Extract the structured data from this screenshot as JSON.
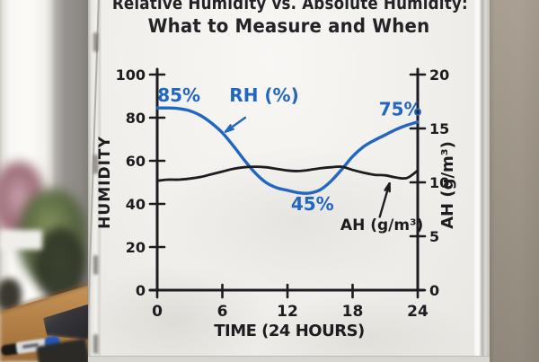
{
  "scene": {
    "title_line1": "Relative Humidity vs. Absolute Humidity:",
    "title_line2": "What to Measure and When"
  },
  "chart_data": {
    "type": "line",
    "title": "Relative Humidity vs. Absolute Humidity: What to Measure and When",
    "xlabel": "TIME (24 HOURS)",
    "ylabel_left": "HUMIDITY",
    "ylabel_right": "AH (g/m³)",
    "x_range": [
      0,
      24
    ],
    "x_ticks": [
      0,
      6,
      12,
      18,
      24
    ],
    "y_left_range": [
      0,
      100
    ],
    "y_left_ticks": [
      100,
      80,
      60,
      40,
      20,
      0
    ],
    "y_right_range": [
      0,
      20
    ],
    "y_right_ticks": [
      20,
      15,
      10,
      5,
      0
    ],
    "grid": false,
    "legend": "inline-annotations",
    "ink_black": "#1d1d1f",
    "ink_blue": "#2166c2",
    "x": [
      0,
      1,
      2,
      3,
      4,
      5,
      6,
      7,
      8,
      9,
      10,
      11,
      12,
      13,
      14,
      15,
      16,
      17,
      18,
      19,
      20,
      21,
      22,
      23,
      24
    ],
    "series": [
      {
        "name": "RH (%)",
        "axis": "left",
        "color": "#2166c2",
        "values": [
          84.5,
          84.5,
          84.2,
          83.2,
          81,
          77.5,
          73,
          67,
          60.5,
          54.5,
          50,
          47.5,
          46.3,
          45.2,
          45,
          46.5,
          50.5,
          56,
          62,
          66.5,
          69.5,
          72,
          74.5,
          76.5,
          78
        ]
      },
      {
        "name": "AH (g/m³)",
        "axis": "right",
        "color": "#1d1d1f",
        "values": [
          10.15,
          10.25,
          10.25,
          10.35,
          10.5,
          10.75,
          11.0,
          11.25,
          11.4,
          11.45,
          11.4,
          11.25,
          11.1,
          11.05,
          11.15,
          11.3,
          11.4,
          11.45,
          11.15,
          10.9,
          10.7,
          10.65,
          10.45,
          10.4,
          11.1
        ]
      }
    ],
    "annotations": [
      {
        "text": "85%",
        "x": 2.0,
        "y": 87.5,
        "color": "#2166c2",
        "size": 20
      },
      {
        "text": "RH (%)",
        "x": 9.85,
        "y": 87.5,
        "color": "#2166c2",
        "size": 20
      },
      {
        "text": "45%",
        "x": 14.3,
        "y": 37.0,
        "color": "#2166c2",
        "size": 20
      },
      {
        "text": "75%",
        "x": 22.4,
        "y": 81.0,
        "color": "#2166c2",
        "size": 20
      },
      {
        "text": "AH (g/m³)",
        "x": 20.7,
        "y": 28.0,
        "color": "#1d1d1f",
        "size": 17
      }
    ],
    "arrows": [
      {
        "x1": 8.1,
        "y1": 80.0,
        "x2": 6.3,
        "y2": 73.5,
        "color": "#2166c2"
      },
      {
        "x1": 20.5,
        "y1": 34.0,
        "x2": 21.4,
        "y2": 49.5,
        "color": "#1d1d1f"
      }
    ]
  }
}
